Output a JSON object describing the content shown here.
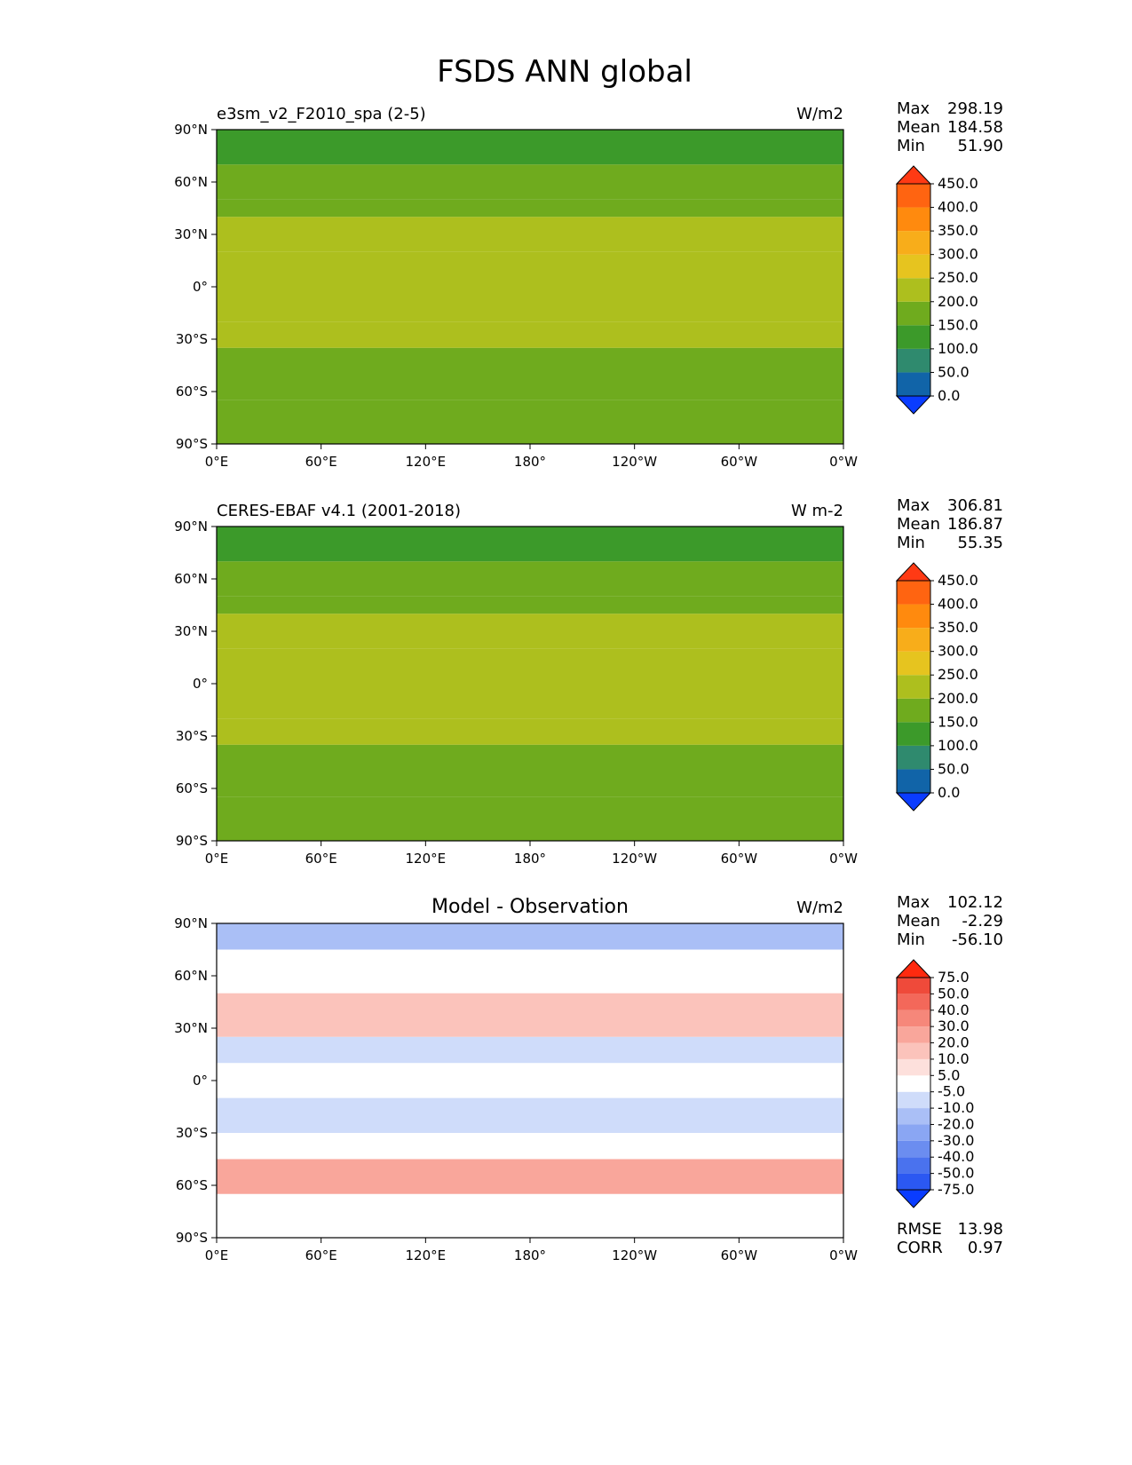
{
  "title": "FSDS ANN global",
  "axes": {
    "lat_ticks": [
      "90°N",
      "60°N",
      "30°N",
      "0°",
      "30°S",
      "60°S",
      "90°S"
    ],
    "lon_ticks": [
      "0°E",
      "60°E",
      "120°E",
      "180°",
      "120°W",
      "60°W",
      "0°W"
    ]
  },
  "chart_data": [
    {
      "type": "heatmap",
      "panel": "test",
      "left_title": "e3sm_v2_F2010_spa (2-5)",
      "center_title": "",
      "units": "W/m2",
      "stats": {
        "Max": "298.19",
        "Mean": "184.58",
        "Min": "51.90"
      },
      "colorbar": {
        "levels": [
          "0.0",
          "50.0",
          "100.0",
          "150.0",
          "200.0",
          "250.0",
          "300.0",
          "350.0",
          "400.0",
          "450.0"
        ],
        "colors": [
          "#0a3cff",
          "#1164a8",
          "#2f8a6e",
          "#3c9a2a",
          "#6fab1e",
          "#adbf1e",
          "#e6c41f",
          "#f8ad1a",
          "#ff8a0e",
          "#ff6411",
          "#ff3a14"
        ]
      },
      "bands": [
        {
          "from_lat": 90,
          "to_lat": 70,
          "value": 100
        },
        {
          "from_lat": 70,
          "to_lat": 50,
          "value": 150
        },
        {
          "from_lat": 50,
          "to_lat": 40,
          "value": 150
        },
        {
          "from_lat": 40,
          "to_lat": 20,
          "value": 200
        },
        {
          "from_lat": 20,
          "to_lat": -20,
          "value": 200
        },
        {
          "from_lat": -20,
          "to_lat": -35,
          "value": 200
        },
        {
          "from_lat": -35,
          "to_lat": -45,
          "value": 150
        },
        {
          "from_lat": -45,
          "to_lat": -65,
          "value": 150
        },
        {
          "from_lat": -65,
          "to_lat": -90,
          "value": 150
        }
      ]
    },
    {
      "type": "heatmap",
      "panel": "reference",
      "left_title": "CERES-EBAF v4.1 (2001-2018)",
      "center_title": "",
      "units": "W m-2",
      "stats": {
        "Max": "306.81",
        "Mean": "186.87",
        "Min": "55.35"
      },
      "colorbar": {
        "levels": [
          "0.0",
          "50.0",
          "100.0",
          "150.0",
          "200.0",
          "250.0",
          "300.0",
          "350.0",
          "400.0",
          "450.0"
        ],
        "colors": [
          "#0a3cff",
          "#1164a8",
          "#2f8a6e",
          "#3c9a2a",
          "#6fab1e",
          "#adbf1e",
          "#e6c41f",
          "#f8ad1a",
          "#ff8a0e",
          "#ff6411",
          "#ff3a14"
        ]
      },
      "bands": [
        {
          "from_lat": 90,
          "to_lat": 70,
          "value": 100
        },
        {
          "from_lat": 70,
          "to_lat": 50,
          "value": 150
        },
        {
          "from_lat": 50,
          "to_lat": 40,
          "value": 150
        },
        {
          "from_lat": 40,
          "to_lat": 20,
          "value": 200
        },
        {
          "from_lat": 20,
          "to_lat": -20,
          "value": 200
        },
        {
          "from_lat": -20,
          "to_lat": -35,
          "value": 200
        },
        {
          "from_lat": -35,
          "to_lat": -45,
          "value": 150
        },
        {
          "from_lat": -45,
          "to_lat": -65,
          "value": 150
        },
        {
          "from_lat": -65,
          "to_lat": -90,
          "value": 150
        }
      ]
    },
    {
      "type": "heatmap",
      "panel": "difference",
      "left_title": "",
      "center_title": "Model - Observation",
      "units": "W/m2",
      "stats": {
        "Max": "102.12",
        "Mean": "-2.29",
        "Min": "-56.10"
      },
      "extra_stats": {
        "RMSE": "13.98",
        "CORR": "0.97"
      },
      "colorbar": {
        "levels": [
          "-75.0",
          "-50.0",
          "-40.0",
          "-30.0",
          "-20.0",
          "-10.0",
          "-5.0",
          "5.0",
          "10.0",
          "20.0",
          "30.0",
          "40.0",
          "50.0",
          "75.0"
        ],
        "colors": [
          "#0a3cff",
          "#2b58f2",
          "#4a72ee",
          "#6b8df0",
          "#8aa6f3",
          "#aabff6",
          "#cfdcfa",
          "#ffffff",
          "#fde0dc",
          "#fbc3bb",
          "#f9a69b",
          "#f6877a",
          "#f3685a",
          "#ef4a3a",
          "#ff2a0f"
        ]
      },
      "bands": [
        {
          "from_lat": 90,
          "to_lat": 75,
          "value": -20
        },
        {
          "from_lat": 75,
          "to_lat": 50,
          "value": 0
        },
        {
          "from_lat": 50,
          "to_lat": 25,
          "value": 10
        },
        {
          "from_lat": 25,
          "to_lat": 10,
          "value": -10
        },
        {
          "from_lat": 10,
          "to_lat": -10,
          "value": 0
        },
        {
          "from_lat": -10,
          "to_lat": -30,
          "value": -10
        },
        {
          "from_lat": -30,
          "to_lat": -45,
          "value": 0
        },
        {
          "from_lat": -45,
          "to_lat": -65,
          "value": 20
        },
        {
          "from_lat": -65,
          "to_lat": -90,
          "value": 0
        }
      ]
    }
  ]
}
